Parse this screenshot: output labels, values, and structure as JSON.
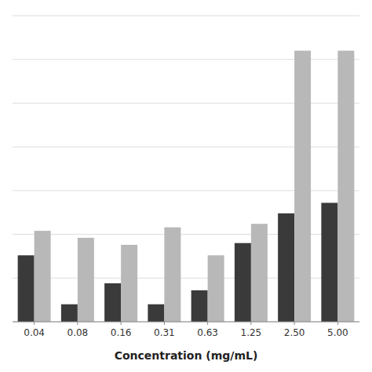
{
  "chart_data": {
    "type": "bar",
    "xlabel": "Concentration (mg/mL)",
    "categories": [
      "0.04",
      "0.08",
      "0.16",
      "0.31",
      "0.63",
      "1.25",
      "2.50",
      "5.00"
    ],
    "series": [
      {
        "color": "#3a3a3a",
        "values": [
          0.38,
          0.1,
          0.22,
          0.1,
          0.18,
          0.45,
          0.62,
          0.68
        ]
      },
      {
        "color": "#b8b8b8",
        "values": [
          0.52,
          0.48,
          0.44,
          0.54,
          0.38,
          0.56,
          1.55,
          1.55
        ]
      }
    ],
    "ylim": [
      0,
      1.75
    ],
    "yticks": [
      0,
      0.25,
      0.5,
      0.75,
      1.0,
      1.25,
      1.5,
      1.75
    ],
    "grid": true,
    "tick_labels": "x"
  }
}
